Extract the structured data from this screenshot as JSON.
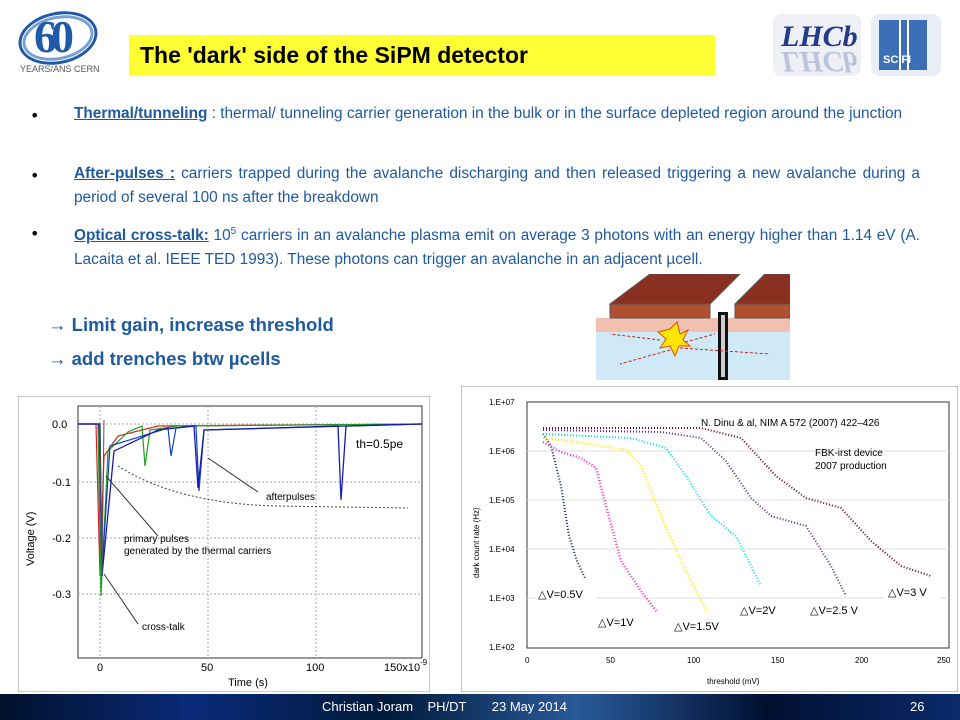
{
  "logos": {
    "cern_number": "60",
    "cern_years": "YEARS/ANS CERN",
    "lhcb": "LHCb",
    "scifi": "SC FI"
  },
  "title": "The 'dark' side of the SiPM detector",
  "bullets": [
    {
      "term": "Thermal/tunneling",
      "text": " : thermal/ tunneling carrier generation in the bulk or in the surface depleted region around the junction"
    },
    {
      "term": "After-pulses :",
      "text": " carriers trapped during the avalanche discharging and then released triggering a new avalanche during a period of several 100 ns after the breakdown"
    },
    {
      "term": "Optical cross-talk:",
      "text_a": " 10",
      "sup": "5",
      "text_b": " carriers in an avalanche plasma emit on average 3 photons with an energy higher than 1.14 eV (A. Lacaita et al. IEEE TED 1993). These photons can trigger an avalanche in an adjacent µcell."
    }
  ],
  "conclusions": [
    "→ Limit gain, increase threshold",
    "→ add trenches btw µcells"
  ],
  "left_plot": {
    "ylabel": "Voltage (V)",
    "xlabel": "Time (s)",
    "yticks": [
      "0.0",
      "-0.1",
      "-0.2",
      "-0.3"
    ],
    "xticks": [
      "0",
      "50",
      "100",
      "150x10"
    ],
    "xexp": "-9",
    "annotations": [
      "afterpulses",
      "primary pulses",
      "generated by the thermal carriers",
      "cross-talk",
      "th=0.5pe"
    ]
  },
  "right_plot": {
    "ylabel": "dark count rate (Hz)",
    "xlabel": "threshold (mV)",
    "yticks": [
      "1.E+07",
      "1.E+06",
      "1.E+05",
      "1.E+04",
      "1.E+03",
      "1.E+02"
    ],
    "xticks": [
      "0",
      "50",
      "100",
      "150",
      "200",
      "250"
    ],
    "reference": "N. Dinu & al, NIM A 572 (2007) 422–426",
    "device_line1": "FBK-irst device",
    "device_line2": "2007 production",
    "series_labels": [
      "△V=0.5V",
      "△V=1V",
      "△V=1.5V",
      "△V=2V",
      "△V=2.5 V",
      "△V=3 V"
    ]
  },
  "footer": {
    "author": "Christian Joram",
    "dept": "PH/DT",
    "date": "23 May 2014",
    "page": "26"
  }
}
